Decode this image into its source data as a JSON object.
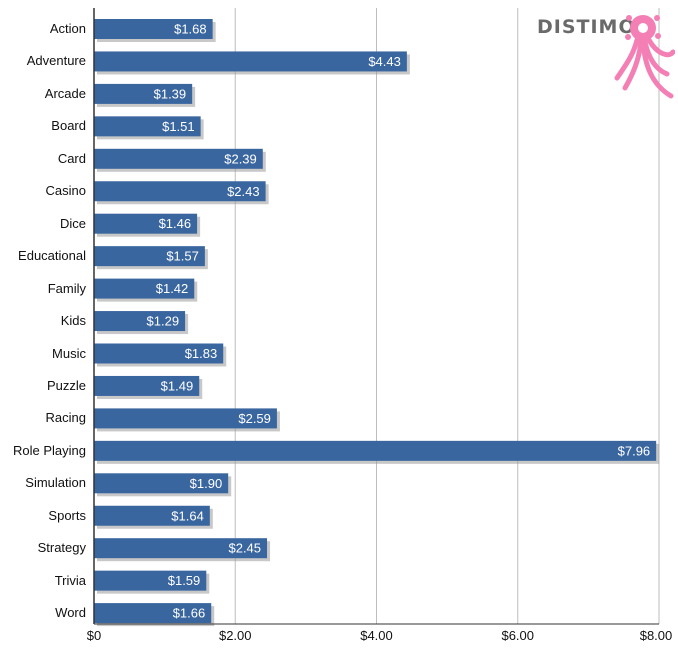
{
  "logo": {
    "text": "DISTIMO",
    "accent_color": "#f47fb4"
  },
  "colors": {
    "bar": "#3a66a0",
    "bar_shadow": "#9a9a9a",
    "grid": "#bdbdbd",
    "axis": "#333333"
  },
  "chart_data": {
    "type": "bar",
    "orientation": "horizontal",
    "categories": [
      "Action",
      "Adventure",
      "Arcade",
      "Board",
      "Card",
      "Casino",
      "Dice",
      "Educational",
      "Family",
      "Kids",
      "Music",
      "Puzzle",
      "Racing",
      "Role Playing",
      "Simulation",
      "Sports",
      "Strategy",
      "Trivia",
      "Word"
    ],
    "values": [
      1.68,
      4.43,
      1.39,
      1.51,
      2.39,
      2.43,
      1.46,
      1.57,
      1.42,
      1.29,
      1.83,
      1.49,
      2.59,
      7.96,
      1.9,
      1.64,
      2.45,
      1.59,
      1.66
    ],
    "value_labels": [
      "$1.68",
      "$4.43",
      "$1.39",
      "$1.51",
      "$2.39",
      "$2.43",
      "$1.46",
      "$1.57",
      "$1.42",
      "$1.29",
      "$1.83",
      "$1.49",
      "$2.59",
      "$7.96",
      "$1.90",
      "$1.64",
      "$2.45",
      "$1.59",
      "$1.66"
    ],
    "xlim": [
      0,
      8
    ],
    "xticks": [
      0,
      2,
      4,
      6,
      8
    ],
    "xtick_labels": [
      "$0",
      "$2.00",
      "$4.00",
      "$6.00",
      "$8.00"
    ],
    "title": "",
    "xlabel": "",
    "ylabel": "",
    "grid": true,
    "legend": "none"
  }
}
